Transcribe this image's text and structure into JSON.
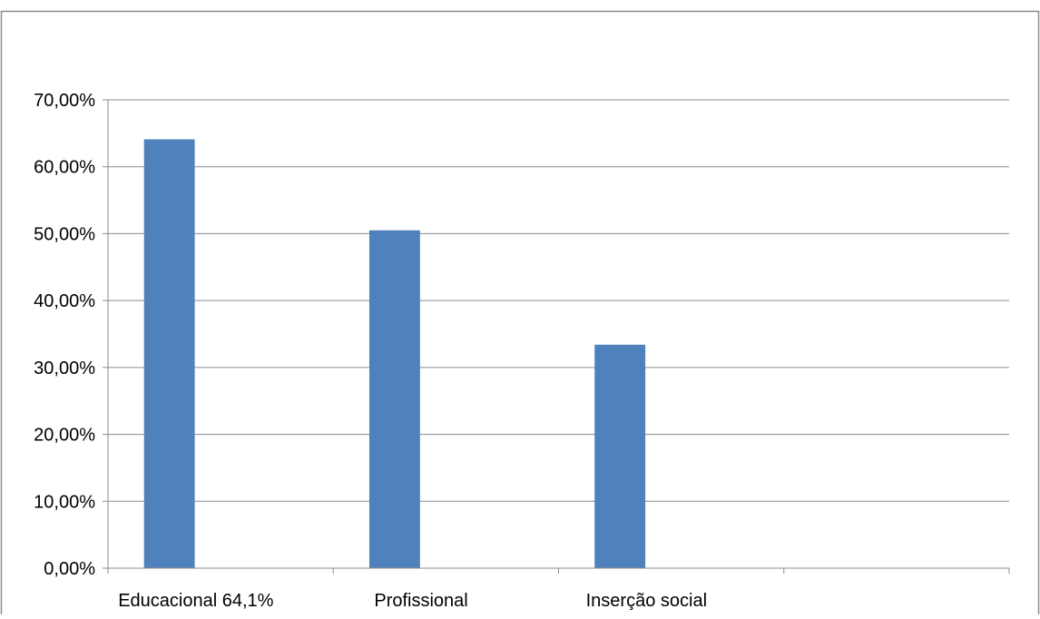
{
  "chart_data": {
    "type": "bar",
    "categories": [
      "Educacional 64,1%",
      "Profissional",
      "Inserção social",
      ""
    ],
    "series": [
      {
        "values": [
          0.641,
          0.505,
          0.334,
          null
        ]
      }
    ],
    "yticks": [
      "0,00%",
      "10,00%",
      "20,00%",
      "30,00%",
      "40,00%",
      "50,00%",
      "60,00%",
      "70,00%"
    ],
    "ylim": [
      0,
      0.7
    ],
    "grid": true,
    "bar_color": "#4F81BD",
    "title": "",
    "xlabel": "",
    "ylabel": ""
  }
}
